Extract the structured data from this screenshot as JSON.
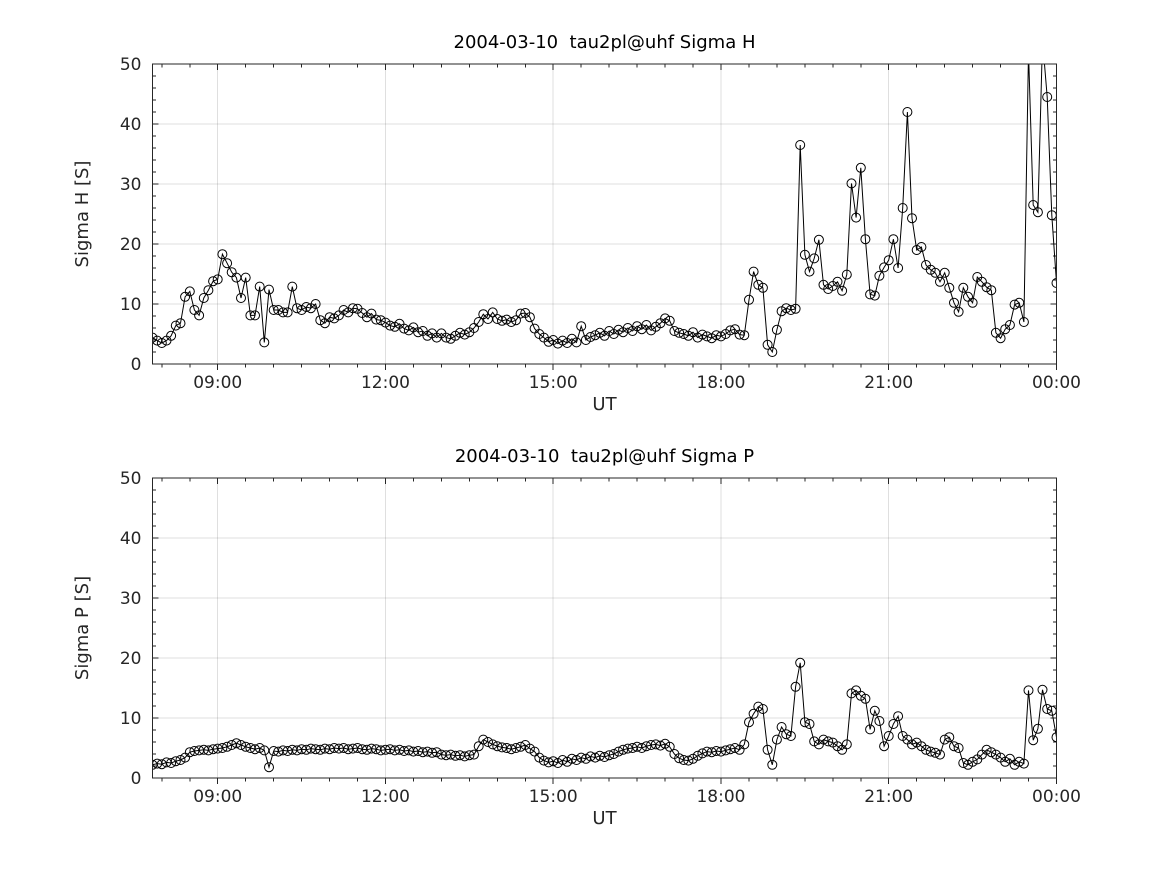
{
  "figure": {
    "background": "#ffffff",
    "axis_color": "#262626",
    "grid_color": "rgba(38,38,38,0.15)",
    "line_color": "#000000",
    "marker": "open-circle"
  },
  "chart_data": [
    {
      "type": "line",
      "title": "2004-03-10  tau2pl@uhf Sigma H",
      "xlabel": "UT",
      "ylabel": "Sigma H [S]",
      "ylim": [
        0,
        50
      ],
      "yticks": [
        0,
        10,
        20,
        30,
        40,
        50
      ],
      "xtick_labels": [
        "09:00",
        "12:00",
        "15:00",
        "18:00",
        "21:00",
        "00:00"
      ],
      "x_start": "07:50",
      "x_end": "00:00",
      "x_step_minutes": 5,
      "grid": true,
      "legend": null,
      "values": [
        4.4,
        3.9,
        3.5,
        3.9,
        4.7,
        6.4,
        6.8,
        11.2,
        12.1,
        9.0,
        8.1,
        11.0,
        12.3,
        13.8,
        14.1,
        18.3,
        16.8,
        15.3,
        14.4,
        11.0,
        14.4,
        8.1,
        8.1,
        12.9,
        3.6,
        12.4,
        9.0,
        9.0,
        8.6,
        8.6,
        12.9,
        9.3,
        9.0,
        9.5,
        9.3,
        10.0,
        7.3,
        6.8,
        7.8,
        7.6,
        8.1,
        9.0,
        8.6,
        9.3,
        9.2,
        8.5,
        7.8,
        8.4,
        7.4,
        7.3,
        6.9,
        6.4,
        6.2,
        6.7,
        5.9,
        5.6,
        6.1,
        5.3,
        5.5,
        4.7,
        5.1,
        4.4,
        5.1,
        4.4,
        4.2,
        4.7,
        5.2,
        4.9,
        5.3,
        6.0,
        7.0,
        8.3,
        7.5,
        8.6,
        7.5,
        7.2,
        7.4,
        7.0,
        7.3,
        8.4,
        8.5,
        7.8,
        5.9,
        5.0,
        4.4,
        3.7,
        4.0,
        3.4,
        3.9,
        3.5,
        4.2,
        3.6,
        6.3,
        4.0,
        4.5,
        4.8,
        5.2,
        4.7,
        5.5,
        5.0,
        5.7,
        5.3,
        6.0,
        5.5,
        6.3,
        5.8,
        6.5,
        5.6,
        6.2,
        6.8,
        7.6,
        7.2,
        5.5,
        5.2,
        5.0,
        4.7,
        5.3,
        4.4,
        4.9,
        4.6,
        4.3,
        4.8,
        4.6,
        5.0,
        5.6,
        5.8,
        4.9,
        4.8,
        10.7,
        15.4,
        13.2,
        12.7,
        3.2,
        2.0,
        5.7,
        8.8,
        9.3,
        9.0,
        9.2,
        36.5,
        18.2,
        15.4,
        17.6,
        20.7,
        13.2,
        12.5,
        13.0,
        13.7,
        12.2,
        14.9,
        30.1,
        24.4,
        32.7,
        20.8,
        11.6,
        11.4,
        14.7,
        16.1,
        17.3,
        20.8,
        16.0,
        26.0,
        42.0,
        24.3,
        19.0,
        19.5,
        16.5,
        15.7,
        15.2,
        13.7,
        15.2,
        12.7,
        10.2,
        8.7,
        12.7,
        11.2,
        10.2,
        14.5,
        13.7,
        12.8,
        12.3,
        5.2,
        4.3,
        5.8,
        6.5,
        9.9,
        10.2,
        7.0,
        52.0,
        26.5,
        25.3,
        54.0,
        44.5,
        24.8,
        13.5
      ]
    },
    {
      "type": "line",
      "title": "2004-03-10  tau2pl@uhf Sigma P",
      "xlabel": "UT",
      "ylabel": "Sigma P [S]",
      "ylim": [
        0,
        50
      ],
      "yticks": [
        0,
        10,
        20,
        30,
        40,
        50
      ],
      "xtick_labels": [
        "09:00",
        "12:00",
        "15:00",
        "18:00",
        "21:00",
        "00:00"
      ],
      "x_start": "07:50",
      "x_end": "00:00",
      "x_step_minutes": 5,
      "grid": true,
      "legend": null,
      "values": [
        2.2,
        2.4,
        2.3,
        2.6,
        2.5,
        2.8,
        3.0,
        3.4,
        4.3,
        4.5,
        4.6,
        4.7,
        4.6,
        4.8,
        4.9,
        5.0,
        5.2,
        5.5,
        5.8,
        5.5,
        5.2,
        5.0,
        4.8,
        5.0,
        4.6,
        1.8,
        4.5,
        4.4,
        4.6,
        4.5,
        4.7,
        4.6,
        4.8,
        4.7,
        4.9,
        4.8,
        4.7,
        4.9,
        4.8,
        5.0,
        4.9,
        5.0,
        4.8,
        4.9,
        5.0,
        4.8,
        4.7,
        4.9,
        4.8,
        4.6,
        4.7,
        4.8,
        4.6,
        4.7,
        4.5,
        4.6,
        4.4,
        4.5,
        4.3,
        4.4,
        4.2,
        4.3,
        3.9,
        3.8,
        3.9,
        3.7,
        3.8,
        3.6,
        3.8,
        3.9,
        5.3,
        6.4,
        6.0,
        5.6,
        5.3,
        5.1,
        5.0,
        4.8,
        5.0,
        5.2,
        5.5,
        4.9,
        4.4,
        3.4,
        2.9,
        2.6,
        2.8,
        2.5,
        3.0,
        2.7,
        3.2,
        3.0,
        3.4,
        3.2,
        3.6,
        3.4,
        3.7,
        3.5,
        3.8,
        4.0,
        4.4,
        4.7,
        4.9,
        5.0,
        5.2,
        5.0,
        5.3,
        5.5,
        5.6,
        5.4,
        5.7,
        5.2,
        4.0,
        3.3,
        3.0,
        2.9,
        3.2,
        3.7,
        4.1,
        4.4,
        4.3,
        4.5,
        4.4,
        4.6,
        4.8,
        5.0,
        4.7,
        5.6,
        9.3,
        10.7,
        11.9,
        11.5,
        4.7,
        2.2,
        6.4,
        8.5,
        7.3,
        7.0,
        15.2,
        19.2,
        9.3,
        9.0,
        6.1,
        5.6,
        6.4,
        6.1,
        5.9,
        5.3,
        4.7,
        5.6,
        14.1,
        14.6,
        13.7,
        13.2,
        8.1,
        11.2,
        9.5,
        5.3,
        7.0,
        9.0,
        10.3,
        7.0,
        6.4,
        5.6,
        5.9,
        5.3,
        4.7,
        4.4,
        4.2,
        3.9,
        6.4,
        6.8,
        5.3,
        5.0,
        2.5,
        2.2,
        2.7,
        3.1,
        3.9,
        4.7,
        4.3,
        3.9,
        3.4,
        2.7,
        3.2,
        2.2,
        2.7,
        2.4,
        14.6,
        6.3,
        8.2,
        14.7,
        11.5,
        11.2,
        6.8
      ]
    }
  ]
}
